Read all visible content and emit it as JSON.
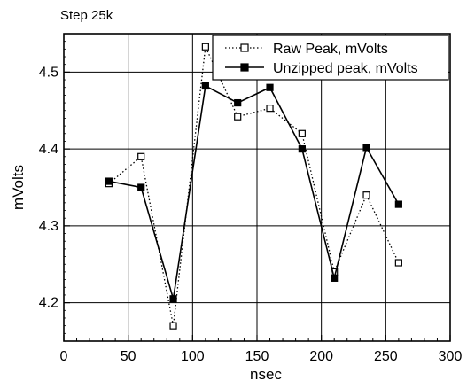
{
  "chart_data": {
    "type": "line",
    "title": "Step 25k",
    "xlabel": "nsec",
    "ylabel": "mVolts",
    "xlim": [
      0,
      300
    ],
    "ylim": [
      4.15,
      4.55
    ],
    "xticks": [
      0,
      50,
      100,
      150,
      200,
      250,
      300
    ],
    "yticks": [
      4.2,
      4.3,
      4.4,
      4.5
    ],
    "grid": true,
    "legend_position": "top-right",
    "series": [
      {
        "name": "Raw Peak, mVolts",
        "style": "dotted",
        "marker": "open-square",
        "x": [
          35,
          60,
          85,
          110,
          135,
          160,
          185,
          210,
          235,
          260
        ],
        "y": [
          4.355,
          4.39,
          4.17,
          4.533,
          4.442,
          4.453,
          4.42,
          4.24,
          4.34,
          4.252
        ]
      },
      {
        "name": "Unzipped peak, mVolts",
        "style": "solid",
        "marker": "filled-square",
        "x": [
          35,
          60,
          85,
          110,
          135,
          160,
          185,
          210,
          235,
          260
        ],
        "y": [
          4.358,
          4.35,
          4.205,
          4.482,
          4.46,
          4.48,
          4.4,
          4.232,
          4.402,
          4.328
        ]
      }
    ]
  }
}
